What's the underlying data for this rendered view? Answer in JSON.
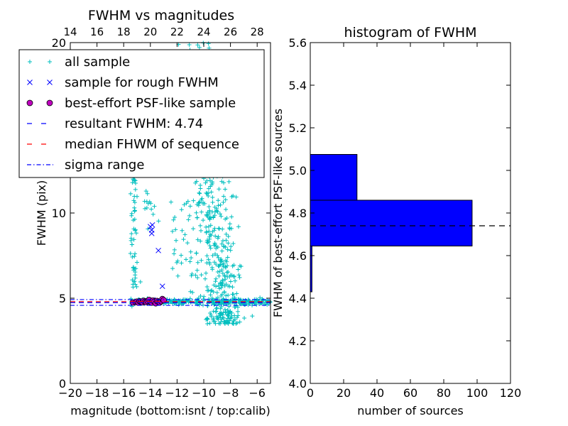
{
  "chart_data": [
    {
      "type": "scatter",
      "title": "FWHM vs magnitudes",
      "xlabel": "magnitude (bottom:isnt / top:calib)",
      "ylabel": "FWHM (pix)",
      "xlim": [
        -20,
        -5
      ],
      "ylim": [
        0,
        20
      ],
      "xticks": [
        "−20",
        "−18",
        "−16",
        "−14",
        "−12",
        "−10",
        "−8",
        "−6"
      ],
      "xtick_values": [
        -20,
        -18,
        -16,
        -14,
        -12,
        -10,
        -8,
        -6
      ],
      "yticks": [
        "0",
        "5",
        "10"
      ],
      "ytick_values": [
        0,
        5,
        10
      ],
      "top_xticks": [
        "14",
        "16",
        "18",
        "20",
        "22",
        "24",
        "26",
        "28"
      ],
      "top_xtick_values": [
        14,
        16,
        18,
        20,
        22,
        24,
        26,
        28
      ],
      "top_ytick": "20",
      "top_ytick_value": 20,
      "calib_offset": 34.0,
      "legend_position": "upper-left",
      "series": [
        {
          "name": "all sample",
          "marker": "plus",
          "color": "#00bfbf",
          "note": "clumps: flat band at FWHM≈4.8 from mag −15.5 to −5; vertical column at mag ≈ −15.2 from FWHM 5.5 to 12.5; dense plume around mag −10 to −8 from FWHM 3.5 to 20; small clump near mag −14, FWHM 9–11"
        },
        {
          "name": "sample for rough FWHM",
          "marker": "x",
          "color": "#0000ff",
          "x": [
            -14.0,
            -13.9,
            -13.85,
            -13.9,
            -13.4,
            -13.1,
            -14.2,
            -13.8
          ],
          "y": [
            9.2,
            9.0,
            9.3,
            8.8,
            7.8,
            5.7,
            4.8,
            4.9
          ]
        },
        {
          "name": "best-effort PSF-like sample",
          "marker": "circle",
          "color": "#bf00bf",
          "x": [
            -15.3,
            -15.1,
            -15.0,
            -14.9,
            -14.8,
            -14.7,
            -14.6,
            -14.5,
            -14.4,
            -14.3,
            -14.2,
            -14.1,
            -14.0,
            -13.9,
            -13.8,
            -13.7,
            -13.6,
            -13.5,
            -13.4,
            -13.3,
            -13.2,
            -13.1,
            -13.0
          ],
          "y": [
            4.75,
            4.78,
            4.8,
            4.74,
            4.82,
            4.79,
            4.76,
            4.85,
            4.8,
            4.77,
            4.83,
            4.9,
            4.78,
            4.74,
            4.86,
            4.8,
            4.7,
            4.84,
            4.79,
            4.75,
            4.82,
            4.95,
            4.88
          ]
        },
        {
          "name": "resultant FWHM: 4.74",
          "style": "dashed",
          "color": "#0000ff",
          "y": 4.74
        },
        {
          "name": "median FHWM of sequence",
          "style": "dashed",
          "color": "#ff0000",
          "y": 4.8
        },
        {
          "name": "sigma range",
          "style": "dashdot",
          "color": "#0000ff",
          "y": [
            4.58,
            4.92
          ]
        }
      ]
    },
    {
      "type": "bar",
      "orientation": "horizontal",
      "title": "histogram of FWHM",
      "xlabel": "number of sources",
      "ylabel": "FWHM of best-effort PSF-like sources",
      "xlim": [
        0,
        120
      ],
      "ylim": [
        4.0,
        5.6
      ],
      "xticks": [
        "0",
        "20",
        "40",
        "60",
        "80",
        "100",
        "120"
      ],
      "xtick_values": [
        0,
        20,
        40,
        60,
        80,
        100,
        120
      ],
      "yticks": [
        "4.0",
        "4.2",
        "4.4",
        "4.6",
        "4.8",
        "5.0",
        "5.2",
        "5.4",
        "5.6"
      ],
      "ytick_values": [
        4.0,
        4.2,
        4.4,
        4.6,
        4.8,
        5.0,
        5.2,
        5.4,
        5.6
      ],
      "bins": [
        {
          "lo": 4.43,
          "hi": 4.645,
          "count": 1
        },
        {
          "lo": 4.645,
          "hi": 4.86,
          "count": 97
        },
        {
          "lo": 4.86,
          "hi": 5.075,
          "count": 28
        },
        {
          "lo": 5.075,
          "hi": 5.29,
          "count": 0
        },
        {
          "lo": 5.29,
          "hi": 5.505,
          "count": 0
        }
      ],
      "color": "#0000ff",
      "reference_line": {
        "y": 4.74,
        "style": "dashed",
        "color": "#000000"
      }
    }
  ]
}
